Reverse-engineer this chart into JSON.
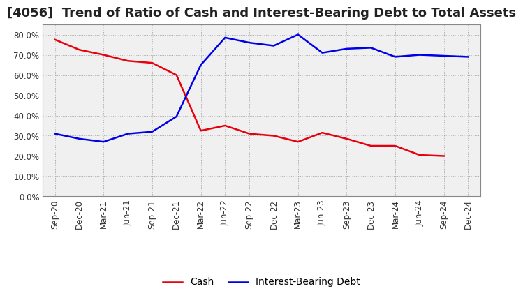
{
  "title": "[4056]  Trend of Ratio of Cash and Interest-Bearing Debt to Total Assets",
  "x_labels": [
    "Sep-20",
    "Dec-20",
    "Mar-21",
    "Jun-21",
    "Sep-21",
    "Dec-21",
    "Mar-22",
    "Jun-22",
    "Sep-22",
    "Dec-22",
    "Mar-23",
    "Jun-23",
    "Sep-23",
    "Dec-23",
    "Mar-24",
    "Jun-24",
    "Sep-24",
    "Dec-24"
  ],
  "cash": [
    0.775,
    0.725,
    0.7,
    0.67,
    0.66,
    0.6,
    0.325,
    0.35,
    0.31,
    0.3,
    0.27,
    0.315,
    0.285,
    0.25,
    0.25,
    0.205,
    0.2,
    null
  ],
  "interest_bearing_debt": [
    0.31,
    0.285,
    0.27,
    0.31,
    0.32,
    0.395,
    0.65,
    0.785,
    0.76,
    0.745,
    0.8,
    0.71,
    0.73,
    0.735,
    0.69,
    0.7,
    0.695,
    0.69
  ],
  "cash_color": "#e8000d",
  "debt_color": "#0000e8",
  "ylim": [
    0.0,
    0.85
  ],
  "yticks": [
    0.0,
    0.1,
    0.2,
    0.3,
    0.4,
    0.5,
    0.6,
    0.7,
    0.8
  ],
  "background_color": "#ffffff",
  "plot_bg_color": "#f0f0f0",
  "grid_color": "#aaaaaa",
  "title_fontsize": 13,
  "legend_fontsize": 10,
  "tick_fontsize": 8.5
}
